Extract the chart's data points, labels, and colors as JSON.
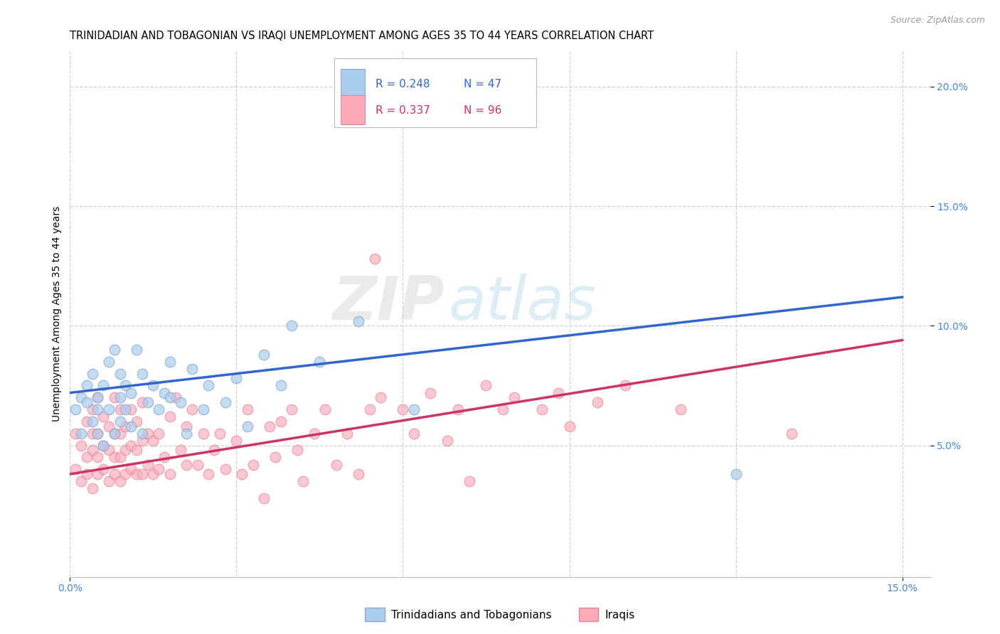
{
  "title": "TRINIDADIAN AND TOBAGONIAN VS IRAQI UNEMPLOYMENT AMONG AGES 35 TO 44 YEARS CORRELATION CHART",
  "source": "Source: ZipAtlas.com",
  "ylabel": "Unemployment Among Ages 35 to 44 years",
  "xlim": [
    0.0,
    0.155
  ],
  "ylim": [
    -0.005,
    0.215
  ],
  "background_color": "#ffffff",
  "grid_color": "#cccccc",
  "series1_face_color": "#aaccee",
  "series1_edge_color": "#88aacc",
  "series2_face_color": "#ffaabb",
  "series2_edge_color": "#dd8899",
  "line1_color": "#3366cc",
  "line2_color": "#cc3366",
  "series1_label": "Trinidadians and Tobagonians",
  "series2_label": "Iraqis",
  "R1_color": "#3366cc",
  "R2_color": "#cc3366",
  "tick_color": "#4488dd",
  "title_fontsize": 10.5,
  "tick_fontsize": 10,
  "ylabel_fontsize": 10,
  "legend_fontsize": 11,
  "marker_size": 110,
  "line_width": 2.5,
  "line1_x0": 0.0,
  "line1_y0": 0.072,
  "line1_x1": 0.15,
  "line1_y1": 0.112,
  "line2_x0": 0.0,
  "line2_y0": 0.038,
  "line2_x1": 0.15,
  "line2_y1": 0.094,
  "series1_x": [
    0.001,
    0.002,
    0.002,
    0.003,
    0.003,
    0.004,
    0.004,
    0.005,
    0.005,
    0.005,
    0.006,
    0.006,
    0.007,
    0.007,
    0.008,
    0.008,
    0.009,
    0.009,
    0.009,
    0.01,
    0.01,
    0.011,
    0.011,
    0.012,
    0.013,
    0.013,
    0.014,
    0.015,
    0.016,
    0.017,
    0.018,
    0.018,
    0.02,
    0.021,
    0.022,
    0.024,
    0.025,
    0.028,
    0.03,
    0.032,
    0.035,
    0.038,
    0.04,
    0.045,
    0.052,
    0.062,
    0.12
  ],
  "series1_y": [
    0.065,
    0.07,
    0.055,
    0.068,
    0.075,
    0.06,
    0.08,
    0.065,
    0.07,
    0.055,
    0.05,
    0.075,
    0.065,
    0.085,
    0.055,
    0.09,
    0.06,
    0.07,
    0.08,
    0.065,
    0.075,
    0.058,
    0.072,
    0.09,
    0.055,
    0.08,
    0.068,
    0.075,
    0.065,
    0.072,
    0.07,
    0.085,
    0.068,
    0.055,
    0.082,
    0.065,
    0.075,
    0.068,
    0.078,
    0.058,
    0.088,
    0.075,
    0.1,
    0.085,
    0.102,
    0.065,
    0.038
  ],
  "series2_x": [
    0.001,
    0.001,
    0.002,
    0.002,
    0.003,
    0.003,
    0.003,
    0.004,
    0.004,
    0.004,
    0.004,
    0.005,
    0.005,
    0.005,
    0.005,
    0.006,
    0.006,
    0.006,
    0.007,
    0.007,
    0.007,
    0.008,
    0.008,
    0.008,
    0.008,
    0.009,
    0.009,
    0.009,
    0.009,
    0.01,
    0.01,
    0.01,
    0.011,
    0.011,
    0.011,
    0.012,
    0.012,
    0.012,
    0.013,
    0.013,
    0.013,
    0.014,
    0.014,
    0.015,
    0.015,
    0.016,
    0.016,
    0.017,
    0.018,
    0.018,
    0.019,
    0.02,
    0.021,
    0.021,
    0.022,
    0.023,
    0.024,
    0.025,
    0.026,
    0.027,
    0.028,
    0.03,
    0.031,
    0.032,
    0.033,
    0.035,
    0.036,
    0.037,
    0.038,
    0.04,
    0.041,
    0.042,
    0.044,
    0.046,
    0.048,
    0.05,
    0.052,
    0.054,
    0.055,
    0.056,
    0.06,
    0.062,
    0.065,
    0.068,
    0.07,
    0.072,
    0.075,
    0.078,
    0.08,
    0.085,
    0.088,
    0.09,
    0.095,
    0.1,
    0.11,
    0.13
  ],
  "series2_y": [
    0.04,
    0.055,
    0.035,
    0.05,
    0.038,
    0.045,
    0.06,
    0.032,
    0.048,
    0.055,
    0.065,
    0.038,
    0.045,
    0.055,
    0.07,
    0.04,
    0.05,
    0.062,
    0.035,
    0.048,
    0.058,
    0.038,
    0.045,
    0.055,
    0.07,
    0.035,
    0.045,
    0.055,
    0.065,
    0.038,
    0.048,
    0.058,
    0.04,
    0.05,
    0.065,
    0.038,
    0.048,
    0.06,
    0.038,
    0.052,
    0.068,
    0.042,
    0.055,
    0.038,
    0.052,
    0.04,
    0.055,
    0.045,
    0.038,
    0.062,
    0.07,
    0.048,
    0.042,
    0.058,
    0.065,
    0.042,
    0.055,
    0.038,
    0.048,
    0.055,
    0.04,
    0.052,
    0.038,
    0.065,
    0.042,
    0.028,
    0.058,
    0.045,
    0.06,
    0.065,
    0.048,
    0.035,
    0.055,
    0.065,
    0.042,
    0.055,
    0.038,
    0.065,
    0.128,
    0.07,
    0.065,
    0.055,
    0.072,
    0.052,
    0.065,
    0.035,
    0.075,
    0.065,
    0.07,
    0.065,
    0.072,
    0.058,
    0.068,
    0.075,
    0.065,
    0.055
  ]
}
